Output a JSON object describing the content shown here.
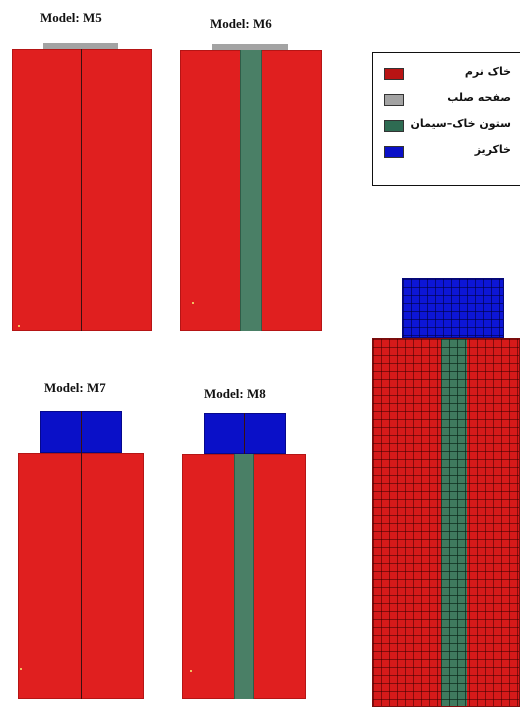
{
  "models": [
    {
      "id": "m5",
      "title": "Model: M5",
      "top_plate": true,
      "embankment": false,
      "column": false
    },
    {
      "id": "m6",
      "title": "Model: M6",
      "top_plate": true,
      "embankment": false,
      "column": true
    },
    {
      "id": "m7",
      "title": "Model: M7",
      "top_plate": false,
      "embankment": true,
      "column": false
    },
    {
      "id": "m8",
      "title": "Model: M8",
      "top_plate": false,
      "embankment": true,
      "column": true
    }
  ],
  "legend": {
    "items": [
      {
        "label": "خاک نرم",
        "color": "#b81414",
        "icon": "soft-soil-swatch"
      },
      {
        "label": "صفحه صلب",
        "color": "#a3a3a3",
        "icon": "rigid-plate-swatch"
      },
      {
        "label": "ستون خاک–سیمان",
        "color": "#2e6b52",
        "icon": "soil-cement-column-swatch"
      },
      {
        "label": "خاکریز",
        "color": "#0a10c8",
        "icon": "embankment-swatch"
      }
    ]
  },
  "colors": {
    "soft_soil": "#e01f1f",
    "rigid_plate": "#a3a3a3",
    "soil_cement_column": "#4a7f66",
    "embankment": "#0a10c8"
  }
}
